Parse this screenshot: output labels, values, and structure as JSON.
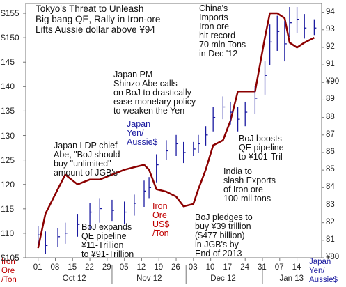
{
  "chart_data": {
    "type": "line",
    "title": "Tokyo's Threat to Unleash\nBig bang QE, Rally in Iron-ore\nLifts Aussie dollar above ¥94",
    "left_axis": {
      "label": "Iron\nOre\n/Ton",
      "ticks": [
        "$105",
        "110",
        "115",
        "120",
        "125",
        "130",
        "135",
        "140",
        "145",
        "$150",
        "$155"
      ],
      "ylim": [
        105,
        157
      ]
    },
    "right_axis": {
      "label": "Japan\nYen/\nAussie$",
      "ticks": [
        "¥80",
        "81",
        "82",
        "83",
        "84",
        "85",
        "86",
        "87",
        "88",
        "89",
        "¥90",
        "91",
        "92",
        "93",
        "94"
      ],
      "ylim": [
        80,
        94.5
      ]
    },
    "x_ticks": [
      "01",
      "08",
      "15",
      "22",
      "29",
      "05",
      "12",
      "19",
      "26",
      "03",
      "10",
      "17",
      "24",
      "31",
      "07",
      "14"
    ],
    "month_labels": [
      "Oct 12",
      "Nov 12",
      "Dec 12",
      "Jan 13"
    ],
    "series": [
      {
        "name": "Iron Ore US$ /Ton",
        "axis": "left",
        "color": "#8b0000",
        "x": [
          "2012-10-01",
          "2012-10-04",
          "2012-10-09",
          "2012-10-12",
          "2012-10-17",
          "2012-10-22",
          "2012-10-26",
          "2012-10-31",
          "2012-11-05",
          "2012-11-09",
          "2012-11-13",
          "2012-11-15",
          "2012-11-18",
          "2012-11-22",
          "2012-11-26",
          "2012-11-29",
          "2012-12-03",
          "2012-12-05",
          "2012-12-08",
          "2012-12-11",
          "2012-12-15",
          "2012-12-18",
          "2012-12-21",
          "2012-12-24",
          "2012-12-28",
          "2013-01-01",
          "2013-01-03",
          "2013-01-06",
          "2013-01-09",
          "2013-01-11",
          "2013-01-14",
          "2013-01-17",
          "2013-01-21"
        ],
        "y": [
          107,
          114,
          119,
          122,
          120,
          121,
          121,
          122,
          123,
          123.5,
          124,
          123,
          119,
          118.5,
          117.5,
          115.5,
          116,
          119,
          123,
          128,
          129,
          133,
          139,
          139,
          139,
          150,
          155,
          155,
          154,
          149,
          148,
          149,
          150
        ]
      },
      {
        "name": "Japan Yen / Aussie$",
        "axis": "right",
        "color": "#1a1aa0",
        "note": "daily high-low bars with close ticks",
        "x": [
          "2012-10-01",
          "2012-10-04",
          "2012-10-09",
          "2012-10-12",
          "2012-10-17",
          "2012-10-22",
          "2012-10-26",
          "2012-10-31",
          "2012-11-05",
          "2012-11-09",
          "2012-11-13",
          "2012-11-15",
          "2012-11-18",
          "2012-11-22",
          "2012-11-26",
          "2012-11-29",
          "2012-12-03",
          "2012-12-05",
          "2012-12-08",
          "2012-12-11",
          "2012-12-15",
          "2012-12-18",
          "2012-12-21",
          "2012-12-24",
          "2012-12-28",
          "2013-01-01",
          "2013-01-03",
          "2013-01-06",
          "2013-01-09",
          "2013-01-11",
          "2013-01-14",
          "2013-01-17",
          "2013-01-21"
        ],
        "low": [
          80.8,
          80.2,
          80.6,
          80.8,
          81.2,
          81.6,
          82.0,
          82.1,
          81.9,
          82.4,
          82.9,
          83.4,
          84.3,
          85.6,
          85.8,
          85.4,
          85.8,
          86.0,
          86.4,
          87.2,
          87.9,
          87.6,
          87.2,
          87.5,
          88.2,
          89.3,
          91.0,
          91.8,
          91.2,
          92.6,
          92.8,
          92.5,
          92.7
        ],
        "high": [
          81.8,
          81.5,
          81.7,
          82.0,
          82.5,
          83.1,
          83.4,
          83.3,
          83.2,
          83.6,
          84.4,
          84.6,
          85.9,
          86.7,
          87.0,
          86.6,
          86.6,
          87.0,
          87.5,
          88.6,
          89.2,
          88.9,
          88.6,
          88.9,
          89.8,
          91.2,
          93.3,
          93.8,
          93.5,
          94.3,
          94.3,
          93.9,
          93.6
        ],
        "close": [
          81.3,
          80.7,
          81.2,
          81.4,
          81.9,
          82.6,
          82.8,
          82.7,
          82.6,
          83.1,
          83.8,
          84.0,
          85.3,
          86.1,
          86.5,
          86.0,
          86.2,
          86.5,
          87.0,
          88.0,
          88.6,
          88.3,
          87.9,
          88.3,
          89.1,
          90.4,
          92.3,
          92.9,
          92.2,
          93.4,
          93.6,
          93.1,
          93.1
        ]
      }
    ],
    "annotations": [
      "China's\nImports\nIron ore\nhit record\n70 mln Tons\nin Dec '12",
      "Japan PM\nShinzo Abe calls\non BoJ to drastically\nease monetary policy\nto weaken the Yen",
      "Japan\nYen/\nAussie$",
      "Japan LDP chief\nAbe, \"BoJ should\nbuy \"unlimited\"\namount of JGB's",
      "BoJ boosts\nQE pipeline\nto ¥101-Tril",
      "India to\nslash Exports\nof Iron ore\n100-mil tons",
      "Iron\nOre\nUS$\n/Ton",
      "BoJ expands\nQE pipeline\n¥11-Trillion\nto ¥91-Trillion",
      "BoJ pledges to\nbuy ¥39 trillion\n($477 billion)\nin JGB's by\nEnd of 2013"
    ]
  }
}
